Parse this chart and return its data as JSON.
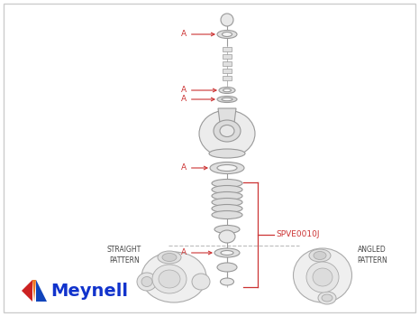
{
  "bg_color": "#ffffff",
  "border_color": "#cccccc",
  "label_color": "#cc3333",
  "part_edge_color": "#999999",
  "text_color": "#444444",
  "bracket_label": "SPVE0010J",
  "straight_label": "STRAIGHT\nPATTERN",
  "angled_label": "ANGLED\nPATTERN",
  "meynell_text": "Meynell"
}
